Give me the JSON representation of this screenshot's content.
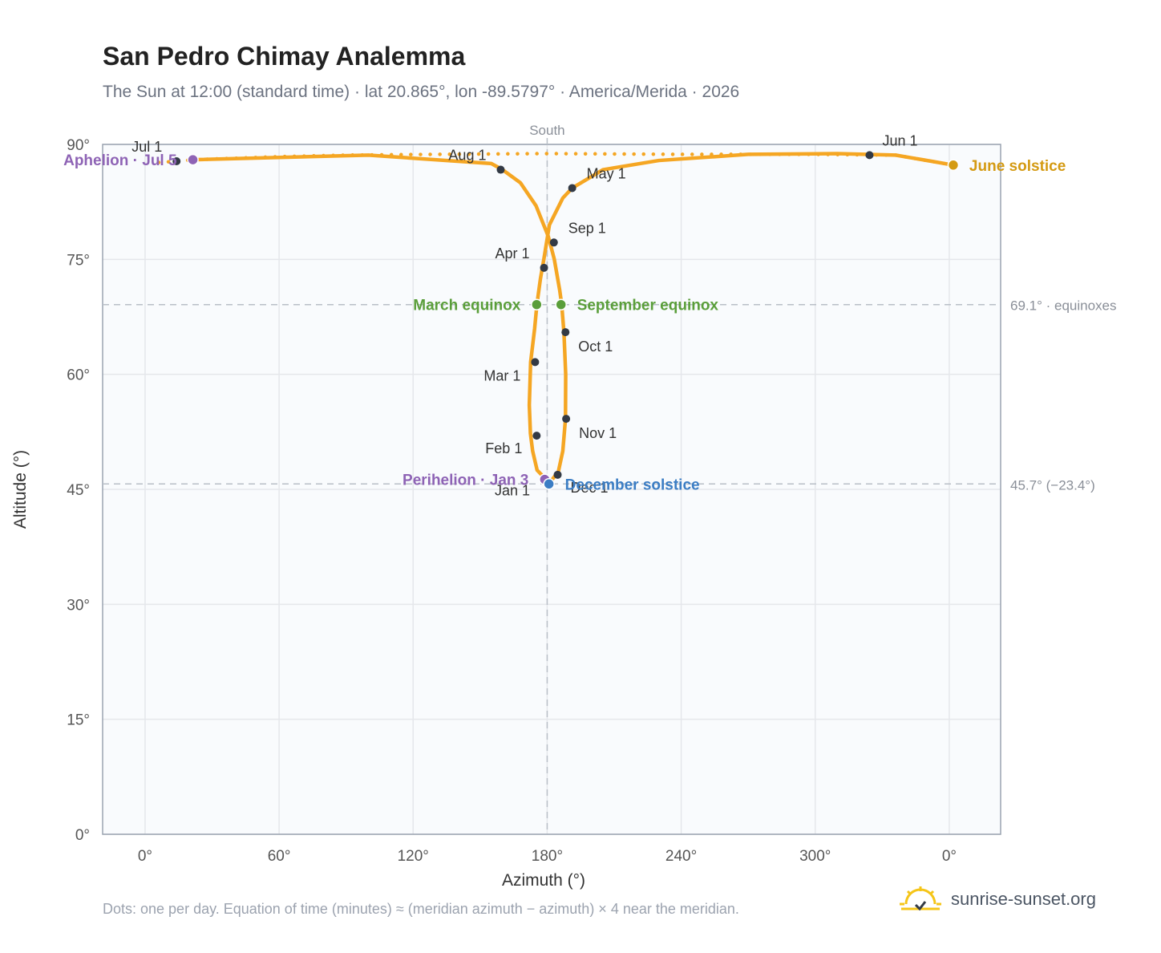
{
  "title": "San Pedro Chimay Analemma",
  "subtitle": "The Sun at 12:00 (standard time) · lat 20.865°, lon -89.5797° · America/Merida · 2026",
  "footnote": "Dots: one per day. Equation of time (minutes) ≈ (meridian azimuth − azimuth) × 4 near the meridian.",
  "brand": {
    "text": "sunrise-sunset.org",
    "icon": "sun-logo-icon"
  },
  "colors": {
    "curve": "#f5a623",
    "month_dot": "#333a45",
    "aphelion": "#8e63b5",
    "perihelion": "#8e63b5",
    "equinox": "#5a9e3a",
    "december_solstice": "#3b7dc4",
    "june_solstice": "#d49a12",
    "plot_bg": "#f9fbfd",
    "grid": "#e5e7eb",
    "ref_line": "#b9bfc7"
  },
  "chart_data": {
    "type": "scatter",
    "title": "San Pedro Chimay Analemma",
    "xlabel": "Azimuth (°)",
    "ylabel": "Altitude (°)",
    "x_ticks": [
      "0°",
      "60°",
      "120°",
      "180°",
      "240°",
      "300°",
      "0°"
    ],
    "y_ticks": [
      "0°",
      "15°",
      "30°",
      "45°",
      "60°",
      "75°",
      "90°"
    ],
    "xlim": [
      -19,
      383
    ],
    "ylim": [
      0,
      90
    ],
    "grid": true,
    "meridian": {
      "label": "South",
      "azimuth": 180
    },
    "reference_lines": [
      {
        "altitude": 69.1,
        "label": "69.1° · equinoxes"
      },
      {
        "altitude": 45.7,
        "label": "45.7° (−23.4°)"
      }
    ],
    "curve_path": [
      [
        180,
        45.7
      ],
      [
        178.8,
        46.5
      ],
      [
        175.5,
        47.5
      ],
      [
        173.5,
        50
      ],
      [
        172.5,
        52.3
      ],
      [
        172,
        56
      ],
      [
        172.6,
        61.6
      ],
      [
        174.4,
        66
      ],
      [
        175.4,
        69.1
      ],
      [
        177,
        72.5
      ],
      [
        178.5,
        75
      ],
      [
        181,
        79.5
      ],
      [
        187,
        83
      ],
      [
        191.2,
        84.3
      ],
      [
        205,
        86.7
      ],
      [
        230,
        87.9
      ],
      [
        270,
        88.7
      ],
      [
        310,
        88.8
      ],
      [
        336,
        88.6
      ],
      [
        352,
        87.8
      ],
      [
        361.8,
        87.3
      ]
    ],
    "curve_path_2": [
      [
        361.8,
        87.3
      ],
      [
        336,
        88.6
      ],
      [
        300,
        88.7
      ],
      [
        240,
        88.7
      ],
      [
        180,
        88.8
      ],
      [
        130,
        88.7
      ],
      [
        90,
        88.6
      ],
      [
        60,
        88.4
      ],
      [
        21.4,
        88.0
      ],
      [
        14,
        87.8
      ],
      [
        4,
        87.6
      ]
    ],
    "curve_path_3": [
      [
        21.4,
        88.0
      ],
      [
        100,
        88.6
      ],
      [
        155,
        87.5
      ],
      [
        160,
        86.7
      ],
      [
        168,
        85
      ],
      [
        175,
        82
      ],
      [
        180.5,
        78
      ],
      [
        183.2,
        75
      ],
      [
        185.6,
        71
      ],
      [
        186.5,
        69.1
      ],
      [
        187.5,
        65.5
      ],
      [
        188.3,
        60
      ],
      [
        188.2,
        54.2
      ],
      [
        187,
        50
      ],
      [
        185,
        47.3
      ],
      [
        183.9,
        46.9
      ],
      [
        181.5,
        46
      ],
      [
        180,
        45.7
      ]
    ],
    "month_points": [
      {
        "label": "Jan 1",
        "az": 179.5,
        "alt": 46.3
      },
      {
        "label": "Feb 1",
        "az": 175.3,
        "alt": 52.0
      },
      {
        "label": "Mar 1",
        "az": 174.6,
        "alt": 61.6
      },
      {
        "label": "Apr 1",
        "az": 178.6,
        "alt": 73.9
      },
      {
        "label": "May 1",
        "az": 191.2,
        "alt": 84.3
      },
      {
        "label": "Jun 1",
        "az": 324.3,
        "alt": 88.6
      },
      {
        "label": "Jul 1",
        "az": 14.1,
        "alt": 87.8
      },
      {
        "label": "Aug 1",
        "az": 159.2,
        "alt": 86.7
      },
      {
        "label": "Sep 1",
        "az": 183.0,
        "alt": 77.2
      },
      {
        "label": "Oct 1",
        "az": 188.2,
        "alt": 65.5
      },
      {
        "label": "Nov 1",
        "az": 188.5,
        "alt": 54.2
      },
      {
        "label": "Dec 1",
        "az": 184.7,
        "alt": 46.9
      }
    ],
    "events": [
      {
        "label": "Aphelion · Jul 5",
        "az": 21.4,
        "alt": 88.0,
        "color": "#8e63b5",
        "anchor": "end"
      },
      {
        "label": "Perihelion · Jan 3",
        "az": 178.9,
        "alt": 46.3,
        "color": "#8e63b5",
        "anchor": "end"
      },
      {
        "label": "March equinox",
        "az": 175.3,
        "alt": 69.1,
        "color": "#5a9e3a",
        "anchor": "end"
      },
      {
        "label": "September equinox",
        "az": 186.2,
        "alt": 69.1,
        "color": "#5a9e3a",
        "anchor": "start"
      },
      {
        "label": "December solstice",
        "az": 180.8,
        "alt": 45.7,
        "color": "#3b7dc4",
        "anchor": "start"
      },
      {
        "label": "June solstice",
        "az": 361.8,
        "alt": 87.3,
        "color": "#d49a12",
        "anchor": "start"
      }
    ]
  }
}
